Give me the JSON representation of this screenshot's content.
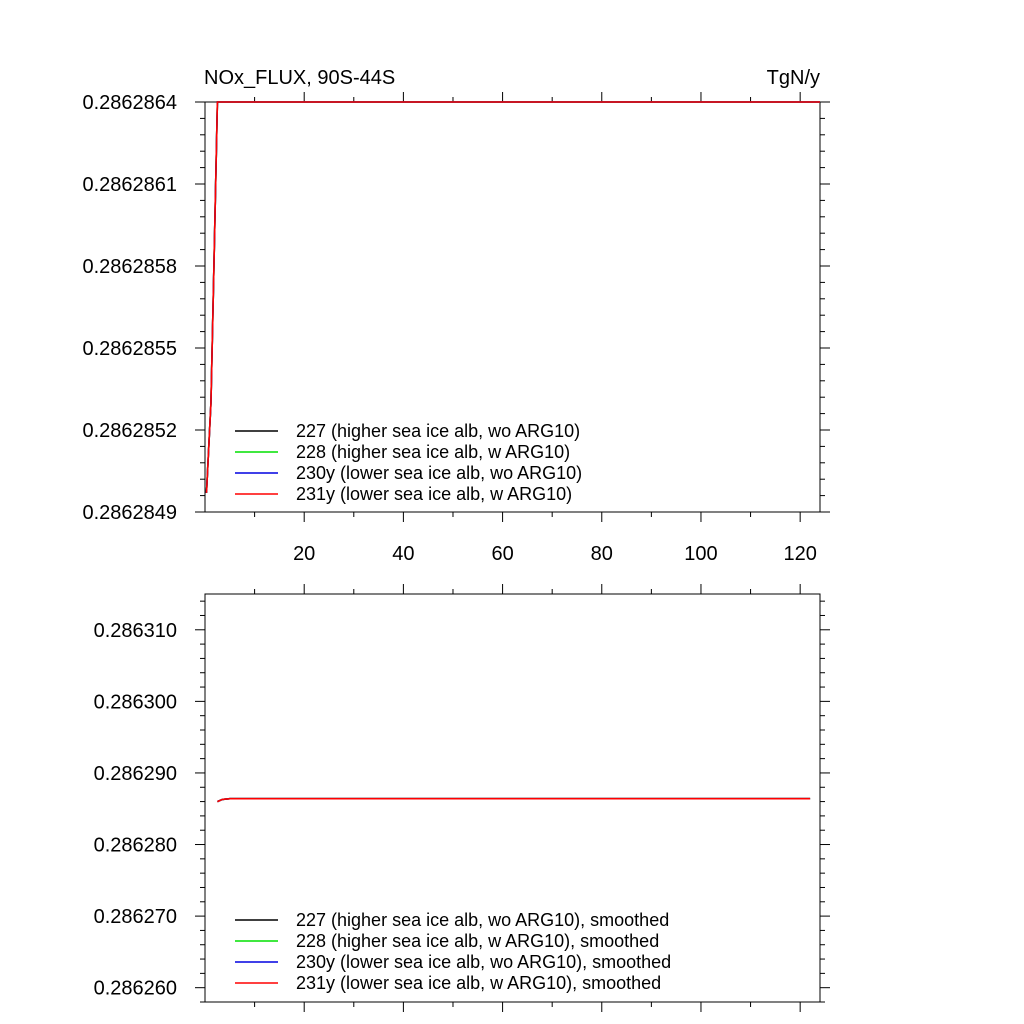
{
  "figure": {
    "title_left": "NOx_FLUX, 90S-44S",
    "title_right": "TgN/y"
  },
  "chart_data": [
    {
      "type": "line",
      "title": "NOx_FLUX, 90S-44S",
      "units": "TgN/y",
      "xlim": [
        0,
        124
      ],
      "ylim": [
        0.2862849,
        0.2862864
      ],
      "xticks": [
        20,
        40,
        60,
        80,
        100,
        120
      ],
      "xtick_labels": [
        "20",
        "40",
        "60",
        "80",
        "100",
        "120"
      ],
      "yticks": [
        0.2862849,
        0.2862852,
        0.2862855,
        0.2862858,
        0.2862861,
        0.2862864
      ],
      "ytick_labels": [
        "0.2862849",
        "0.2862852",
        "0.2862855",
        "0.2862858",
        "0.2862861",
        "0.2862864"
      ],
      "grid": false,
      "legend": "bottom-left",
      "x": [
        0.3,
        1.2,
        1.8,
        2.5,
        124
      ],
      "series": [
        {
          "name": "227 (higher sea ice alb, wo ARG10)",
          "color": "#000000",
          "values": [
            0.28628497,
            0.2862853,
            0.2862858,
            0.2862864,
            0.2862864
          ]
        },
        {
          "name": "228 (higher sea ice alb, w ARG10)",
          "color": "#00e000",
          "values": [
            0.28628497,
            0.2862853,
            0.2862858,
            0.2862864,
            0.2862864
          ]
        },
        {
          "name": "230y (lower sea ice alb, wo ARG10)",
          "color": "#0000e0",
          "values": [
            0.28628497,
            0.2862853,
            0.2862858,
            0.2862864,
            0.2862864
          ]
        },
        {
          "name": "231y (lower sea ice alb, w ARG10)",
          "color": "#ff0000",
          "values": [
            0.28628497,
            0.2862853,
            0.2862858,
            0.2862864,
            0.2862864
          ]
        }
      ]
    },
    {
      "type": "line",
      "xlim": [
        0,
        124
      ],
      "ylim": [
        0.286258,
        0.286315
      ],
      "xticks": [
        20,
        40,
        60,
        80,
        100,
        120
      ],
      "yticks": [
        0.28626,
        0.28627,
        0.28628,
        0.28629,
        0.2863,
        0.28631
      ],
      "ytick_labels": [
        "0.286260",
        "0.286270",
        "0.286280",
        "0.286290",
        "0.286300",
        "0.286310"
      ],
      "grid": false,
      "legend": "bottom-left",
      "x": [
        2.5,
        3.5,
        5,
        122
      ],
      "series": [
        {
          "name": "227 (higher sea ice alb, wo ARG10), smoothed",
          "color": "#000000",
          "values": [
            0.286286,
            0.2862863,
            0.2862864,
            0.2862864
          ]
        },
        {
          "name": "228 (higher sea ice alb, w ARG10), smoothed",
          "color": "#00e000",
          "values": [
            0.286286,
            0.2862863,
            0.2862864,
            0.2862864
          ]
        },
        {
          "name": "230y (lower sea ice alb, wo ARG10), smoothed",
          "color": "#0000e0",
          "values": [
            0.286286,
            0.2862863,
            0.2862864,
            0.2862864
          ]
        },
        {
          "name": "231y (lower sea ice alb, w ARG10), smoothed",
          "color": "#ff0000",
          "values": [
            0.286286,
            0.2862863,
            0.2862864,
            0.2862864
          ]
        }
      ]
    }
  ]
}
